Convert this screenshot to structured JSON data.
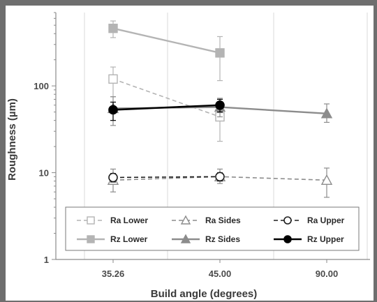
{
  "chart_data": {
    "type": "line",
    "xlabel": "Build angle (degrees)",
    "ylabel": "Roughness (µm)",
    "yscale": "log",
    "ylim": [
      1,
      700
    ],
    "categories": [
      "35.26",
      "45.00",
      "90.00"
    ],
    "y_ticks": [
      {
        "value": 1,
        "label": "1"
      },
      {
        "value": 10,
        "label": "10"
      },
      {
        "value": 100,
        "label": "100"
      }
    ],
    "grid": "vertical",
    "legend_position": "bottom",
    "series": [
      {
        "name": "Ra Lower",
        "values": [
          120,
          44,
          null
        ],
        "err_low": [
          75,
          23,
          null
        ],
        "err_high": [
          165,
          65,
          null
        ],
        "color": "#b4b4b4",
        "dash": true,
        "marker": "square",
        "filled": false
      },
      {
        "name": "Ra Sides",
        "values": [
          8.2,
          9.0,
          8.2
        ],
        "err_low": [
          6.0,
          7.5,
          5.2
        ],
        "err_high": [
          11.0,
          11.0,
          11.3
        ],
        "color": "#8c8c8c",
        "dash": true,
        "marker": "triangle",
        "filled": false
      },
      {
        "name": "Ra Upper",
        "values": [
          8.8,
          9.0,
          null
        ],
        "err_low": [
          7.8,
          8.0,
          null
        ],
        "err_high": [
          9.8,
          10.0,
          null
        ],
        "color": "#1e1e1e",
        "dash": true,
        "marker": "circle",
        "filled": false
      },
      {
        "name": "Rz Lower",
        "values": [
          460,
          240,
          null
        ],
        "err_low": [
          360,
          115,
          null
        ],
        "err_high": [
          560,
          370,
          null
        ],
        "color": "#b4b4b4",
        "dash": false,
        "marker": "square",
        "filled": true
      },
      {
        "name": "Rz Sides",
        "values": [
          55,
          57,
          48
        ],
        "err_low": [
          35,
          44,
          38
        ],
        "err_high": [
          75,
          72,
          62
        ],
        "color": "#8c8c8c",
        "dash": false,
        "marker": "triangle",
        "filled": true
      },
      {
        "name": "Rz Upper",
        "values": [
          53,
          60,
          null
        ],
        "err_low": [
          40,
          50,
          null
        ],
        "err_high": [
          65,
          70,
          null
        ],
        "color": "#000000",
        "dash": false,
        "marker": "circle",
        "filled": true
      }
    ]
  }
}
